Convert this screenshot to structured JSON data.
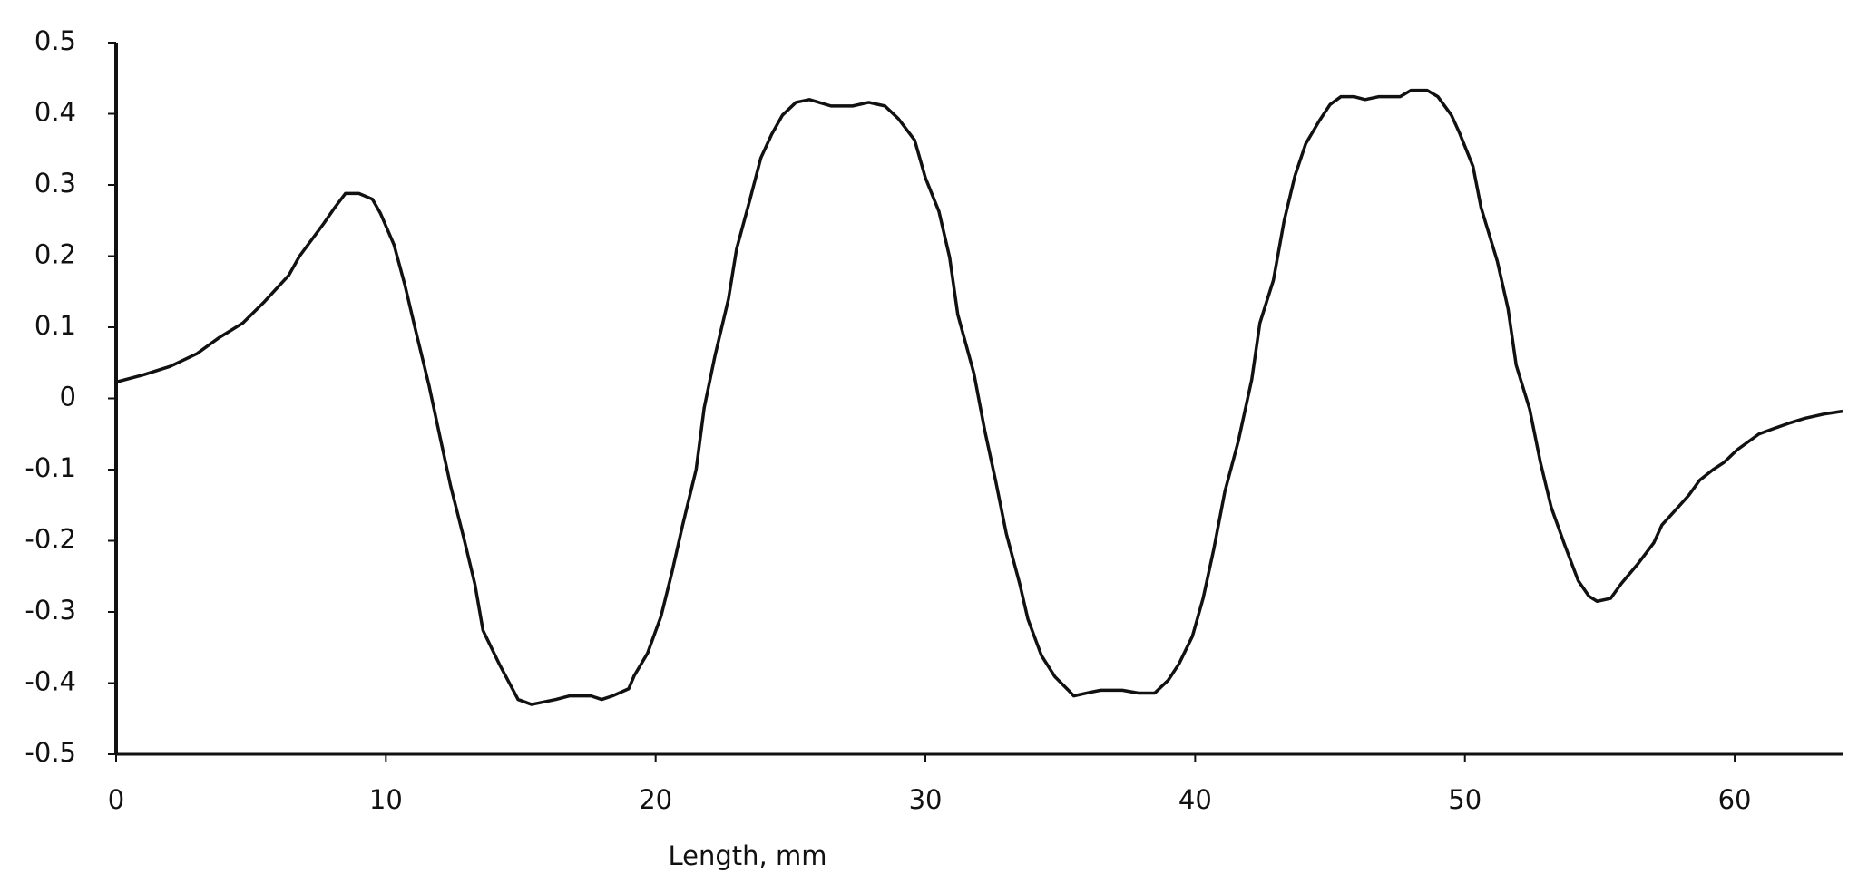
{
  "chart_data": {
    "type": "line",
    "x_label": "Length, mm",
    "x": [
      0,
      1,
      2,
      3,
      3.8,
      4.7,
      5.5,
      6.4,
      6.8,
      7.7,
      8.1,
      8.5,
      9,
      9.5,
      9.8,
      10.3,
      10.7,
      11.1,
      11.6,
      12,
      12.4,
      12.9,
      13.3,
      13.6,
      14.2,
      14.9,
      15.4,
      16.3,
      16.8,
      17.6,
      18,
      18.4,
      19,
      19.2,
      19.7,
      20.2,
      20.6,
      21,
      21.5,
      21.8,
      22.2,
      22.7,
      23,
      23.5,
      23.9,
      24.3,
      24.7,
      25.2,
      25.7,
      26.5,
      27.3,
      27.9,
      28.5,
      29,
      29.6,
      30,
      30.5,
      30.9,
      31.2,
      31.8,
      32.2,
      32.6,
      33,
      33.5,
      33.8,
      34.3,
      34.8,
      35.3,
      35.5,
      36.1,
      36.5,
      37.3,
      37.9,
      38.5,
      39,
      39.4,
      39.9,
      40.3,
      40.7,
      41.1,
      41.6,
      42.1,
      42.4,
      42.9,
      43.3,
      43.7,
      44.1,
      44.6,
      45,
      45.4,
      45.9,
      46.3,
      46.8,
      47.6,
      48,
      48.6,
      49,
      49.5,
      49.8,
      50.3,
      50.6,
      51.2,
      51.6,
      51.9,
      52.4,
      52.8,
      53.2,
      53.7,
      54.2,
      54.6,
      54.9,
      55.4,
      55.8,
      56.4,
      57,
      57.3,
      57.9,
      58.3,
      58.7,
      59.2,
      59.6,
      60.1,
      60.9,
      61.4,
      62,
      62.6,
      63.3,
      64
    ],
    "values": [
      0.023,
      0.033,
      0.045,
      0.063,
      0.085,
      0.106,
      0.136,
      0.173,
      0.2,
      0.246,
      0.268,
      0.288,
      0.288,
      0.28,
      0.26,
      0.216,
      0.16,
      0.096,
      0.018,
      -0.053,
      -0.123,
      -0.198,
      -0.261,
      -0.326,
      -0.373,
      -0.423,
      -0.43,
      -0.423,
      -0.418,
      -0.418,
      -0.423,
      -0.418,
      -0.408,
      -0.39,
      -0.358,
      -0.306,
      -0.245,
      -0.178,
      -0.1,
      -0.013,
      0.06,
      0.14,
      0.21,
      0.28,
      0.338,
      0.371,
      0.398,
      0.416,
      0.42,
      0.411,
      0.411,
      0.416,
      0.411,
      0.393,
      0.363,
      0.31,
      0.263,
      0.198,
      0.118,
      0.035,
      -0.045,
      -0.115,
      -0.19,
      -0.261,
      -0.31,
      -0.361,
      -0.391,
      -0.41,
      -0.418,
      -0.413,
      -0.41,
      -0.41,
      -0.414,
      -0.414,
      -0.396,
      -0.373,
      -0.334,
      -0.28,
      -0.21,
      -0.131,
      -0.06,
      0.027,
      0.106,
      0.166,
      0.25,
      0.313,
      0.358,
      0.39,
      0.413,
      0.424,
      0.424,
      0.42,
      0.424,
      0.424,
      0.433,
      0.433,
      0.424,
      0.398,
      0.373,
      0.326,
      0.268,
      0.193,
      0.126,
      0.047,
      -0.015,
      -0.09,
      -0.153,
      -0.206,
      -0.256,
      -0.278,
      -0.285,
      -0.281,
      -0.26,
      -0.233,
      -0.203,
      -0.178,
      -0.153,
      -0.136,
      -0.115,
      -0.1,
      -0.09,
      -0.072,
      -0.05,
      -0.043,
      -0.035,
      -0.028,
      -0.022,
      -0.018
    ],
    "color": "#111111",
    "xlim": [
      0,
      64
    ],
    "xticks": [
      0,
      10,
      20,
      30,
      40,
      50,
      60
    ],
    "ylim": [
      -0.5,
      0.5
    ],
    "yticks": [
      -0.5,
      -0.4,
      -0.3,
      -0.2,
      -0.1,
      0,
      0.1,
      0.2,
      0.3,
      0.4,
      0.5
    ],
    "grid": false
  }
}
